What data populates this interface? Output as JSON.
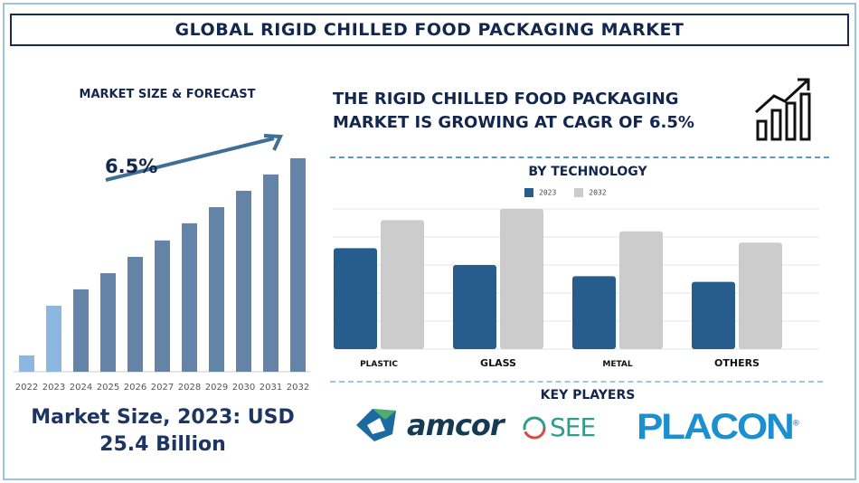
{
  "title": "GLOBAL RIGID CHILLED FOOD PACKAGING MARKET",
  "headline": "THE RIGID CHILLED FOOD PACKAGING MARKET IS GROWING AT CAGR OF 6.5%",
  "market_size_text": "Market Size, 2023: USD 25.4 Billion",
  "key_players_title": "KEY PLAYERS",
  "key_players": [
    "amcor",
    "SEE",
    "PLACON"
  ],
  "colors": {
    "navy": "#13264d",
    "forecast_bar": "#6384a6",
    "history_bar": "#8bb7e0",
    "series_2023": "#275d8c",
    "series_2032": "#cccccc",
    "placon": "#1c8fd1"
  },
  "icons": [
    "growth-chart-icon",
    "trend-arrow-icon"
  ],
  "chart_data": [
    {
      "type": "bar",
      "title": "MARKET SIZE & FORECAST",
      "annotation": "6.5%",
      "categories": [
        "2022",
        "2023",
        "2024",
        "2025",
        "2026",
        "2027",
        "2028",
        "2029",
        "2030",
        "2031",
        "2032"
      ],
      "values": [
        6.3,
        25.4,
        31.7,
        37.9,
        44.2,
        50.5,
        57.1,
        63.3,
        69.6,
        75.9,
        82.1
      ],
      "grid": false
    },
    {
      "type": "bar",
      "title": "BY TECHNOLOGY",
      "categories": [
        "PLASTIC",
        "GLASS",
        "METAL",
        "OTHERS"
      ],
      "series": [
        {
          "name": "2023",
          "values": [
            3.6,
            3.0,
            2.6,
            2.4
          ]
        },
        {
          "name": "2032",
          "values": [
            4.6,
            5.0,
            4.2,
            3.8
          ]
        }
      ],
      "ylim": [
        0,
        5
      ],
      "grid": true,
      "legend": "top"
    }
  ]
}
